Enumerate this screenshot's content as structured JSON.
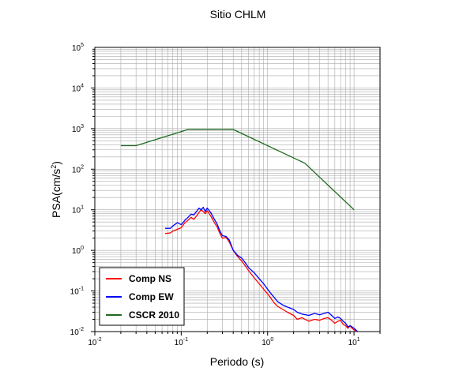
{
  "chart_data": {
    "type": "line",
    "title": "Sitio CHLM",
    "xlabel": "Periodo (s)",
    "ylabel_base": "PSA(cm/s",
    "ylabel_sup": "2",
    "ylabel_close": ")",
    "x_scale": "log",
    "y_scale": "log",
    "xlim": [
      0.01,
      20
    ],
    "ylim": [
      0.01,
      100000
    ],
    "grid": true,
    "legend_position": "bottom-left",
    "x_ticks": [
      {
        "value": 0.01,
        "base": "10",
        "exp": "-2"
      },
      {
        "value": 0.1,
        "base": "10",
        "exp": "-1"
      },
      {
        "value": 1,
        "base": "10",
        "exp": "0"
      },
      {
        "value": 10,
        "base": "10",
        "exp": "1"
      }
    ],
    "y_ticks": [
      {
        "value": 0.01,
        "base": "10",
        "exp": "-2"
      },
      {
        "value": 0.1,
        "base": "10",
        "exp": "-1"
      },
      {
        "value": 1,
        "base": "10",
        "exp": "0"
      },
      {
        "value": 10,
        "base": "10",
        "exp": "1"
      },
      {
        "value": 100,
        "base": "10",
        "exp": "2"
      },
      {
        "value": 1000,
        "base": "10",
        "exp": "3"
      },
      {
        "value": 10000,
        "base": "10",
        "exp": "4"
      },
      {
        "value": 100000,
        "base": "10",
        "exp": "5"
      }
    ],
    "series": [
      {
        "name": "Comp NS",
        "color": "#ff0000",
        "points": [
          [
            0.065,
            2.6
          ],
          [
            0.075,
            2.7
          ],
          [
            0.08,
            3.0
          ],
          [
            0.09,
            3.3
          ],
          [
            0.1,
            3.6
          ],
          [
            0.11,
            4.8
          ],
          [
            0.12,
            5.5
          ],
          [
            0.13,
            6.5
          ],
          [
            0.14,
            5.8
          ],
          [
            0.15,
            7.0
          ],
          [
            0.16,
            8.5
          ],
          [
            0.17,
            10.0
          ],
          [
            0.18,
            9.0
          ],
          [
            0.19,
            8.0
          ],
          [
            0.2,
            9.5
          ],
          [
            0.22,
            7.0
          ],
          [
            0.24,
            5.0
          ],
          [
            0.26,
            3.8
          ],
          [
            0.28,
            2.6
          ],
          [
            0.3,
            2.0
          ],
          [
            0.33,
            2.1
          ],
          [
            0.36,
            1.6
          ],
          [
            0.4,
            1.0
          ],
          [
            0.45,
            0.7
          ],
          [
            0.5,
            0.55
          ],
          [
            0.55,
            0.42
          ],
          [
            0.6,
            0.32
          ],
          [
            0.7,
            0.21
          ],
          [
            0.8,
            0.15
          ],
          [
            0.9,
            0.11
          ],
          [
            1.0,
            0.085
          ],
          [
            1.1,
            0.065
          ],
          [
            1.2,
            0.05
          ],
          [
            1.3,
            0.042
          ],
          [
            1.5,
            0.035
          ],
          [
            1.7,
            0.03
          ],
          [
            2.0,
            0.025
          ],
          [
            2.2,
            0.02
          ],
          [
            2.5,
            0.022
          ],
          [
            3.0,
            0.018
          ],
          [
            3.5,
            0.02
          ],
          [
            4.0,
            0.019
          ],
          [
            4.5,
            0.021
          ],
          [
            5.0,
            0.022
          ],
          [
            5.5,
            0.019
          ],
          [
            6.0,
            0.016
          ],
          [
            6.5,
            0.018
          ],
          [
            7.0,
            0.019
          ],
          [
            7.5,
            0.015
          ],
          [
            8.0,
            0.014
          ],
          [
            8.5,
            0.012
          ],
          [
            9.0,
            0.014
          ],
          [
            9.5,
            0.012
          ],
          [
            10.0,
            0.011
          ],
          [
            11.0,
            0.01
          ]
        ]
      },
      {
        "name": "Comp EW",
        "color": "#0000ff",
        "points": [
          [
            0.065,
            3.5
          ],
          [
            0.075,
            3.5
          ],
          [
            0.08,
            4.0
          ],
          [
            0.09,
            4.8
          ],
          [
            0.1,
            4.3
          ],
          [
            0.11,
            5.5
          ],
          [
            0.12,
            6.5
          ],
          [
            0.13,
            7.8
          ],
          [
            0.14,
            7.5
          ],
          [
            0.15,
            9.0
          ],
          [
            0.16,
            11.0
          ],
          [
            0.17,
            10.0
          ],
          [
            0.18,
            11.5
          ],
          [
            0.19,
            9.0
          ],
          [
            0.2,
            11.0
          ],
          [
            0.22,
            8.5
          ],
          [
            0.24,
            6.0
          ],
          [
            0.26,
            4.5
          ],
          [
            0.28,
            3.0
          ],
          [
            0.3,
            2.3
          ],
          [
            0.33,
            2.2
          ],
          [
            0.36,
            1.8
          ],
          [
            0.4,
            1.0
          ],
          [
            0.45,
            0.75
          ],
          [
            0.5,
            0.65
          ],
          [
            0.55,
            0.5
          ],
          [
            0.6,
            0.38
          ],
          [
            0.7,
            0.28
          ],
          [
            0.8,
            0.2
          ],
          [
            0.9,
            0.15
          ],
          [
            1.0,
            0.11
          ],
          [
            1.1,
            0.085
          ],
          [
            1.2,
            0.068
          ],
          [
            1.3,
            0.055
          ],
          [
            1.5,
            0.045
          ],
          [
            1.7,
            0.04
          ],
          [
            2.0,
            0.035
          ],
          [
            2.2,
            0.03
          ],
          [
            2.5,
            0.027
          ],
          [
            3.0,
            0.025
          ],
          [
            3.5,
            0.028
          ],
          [
            4.0,
            0.026
          ],
          [
            4.5,
            0.028
          ],
          [
            5.0,
            0.03
          ],
          [
            5.5,
            0.025
          ],
          [
            6.0,
            0.021
          ],
          [
            6.5,
            0.023
          ],
          [
            7.0,
            0.021
          ],
          [
            7.5,
            0.018
          ],
          [
            8.0,
            0.016
          ],
          [
            8.5,
            0.013
          ],
          [
            9.0,
            0.014
          ],
          [
            9.5,
            0.013
          ],
          [
            10.0,
            0.012
          ],
          [
            11.0,
            0.01
          ]
        ]
      },
      {
        "name": "CSCR 2010",
        "color": "#1e6b1e",
        "points": [
          [
            0.02,
            380
          ],
          [
            0.03,
            380
          ],
          [
            0.12,
            950
          ],
          [
            0.4,
            950
          ],
          [
            2.7,
            140
          ],
          [
            10.0,
            10
          ]
        ]
      }
    ]
  }
}
